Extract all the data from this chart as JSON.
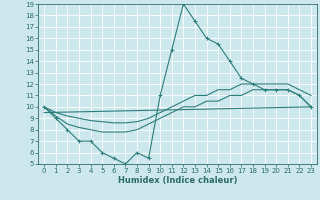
{
  "xlabel": "Humidex (Indice chaleur)",
  "xlim": [
    -0.5,
    23.5
  ],
  "ylim": [
    5,
    19
  ],
  "xticks": [
    0,
    1,
    2,
    3,
    4,
    5,
    6,
    7,
    8,
    9,
    10,
    11,
    12,
    13,
    14,
    15,
    16,
    17,
    18,
    19,
    20,
    21,
    22,
    23
  ],
  "yticks": [
    5,
    6,
    7,
    8,
    9,
    10,
    11,
    12,
    13,
    14,
    15,
    16,
    17,
    18,
    19
  ],
  "bg_color": "#cde8ed",
  "grid_color": "#ffffff",
  "line_color": "#2d7d7a",
  "line1_x": [
    0,
    1,
    2,
    3,
    4,
    5,
    6,
    7,
    8,
    9,
    10,
    11,
    12,
    13,
    14,
    15,
    16,
    17,
    18,
    19,
    20,
    21,
    22,
    23
  ],
  "line1_y": [
    10,
    9,
    8,
    7,
    7,
    6,
    5.5,
    5,
    6,
    5.5,
    11,
    15,
    19,
    17.5,
    16,
    15.5,
    14,
    12.5,
    12,
    11.5,
    11.5,
    11.5,
    11,
    10
  ],
  "line2_x": [
    0,
    23
  ],
  "line2_y": [
    9.5,
    10.0
  ],
  "line3_x": [
    0,
    1,
    2,
    3,
    4,
    5,
    6,
    7,
    8,
    9,
    10,
    11,
    12,
    13,
    14,
    15,
    16,
    17,
    18,
    19,
    20,
    21,
    22,
    23
  ],
  "line3_y": [
    10,
    9.5,
    9.2,
    9.0,
    8.8,
    8.7,
    8.6,
    8.6,
    8.7,
    9.0,
    9.5,
    10.0,
    10.5,
    11.0,
    11.0,
    11.5,
    11.5,
    12.0,
    12.0,
    12.0,
    12.0,
    12.0,
    11.5,
    11.0
  ],
  "line4_x": [
    0,
    1,
    2,
    3,
    4,
    5,
    6,
    7,
    8,
    9,
    10,
    11,
    12,
    13,
    14,
    15,
    16,
    17,
    18,
    19,
    20,
    21,
    22,
    23
  ],
  "line4_y": [
    10,
    9.2,
    8.5,
    8.2,
    8.0,
    7.8,
    7.8,
    7.8,
    8.0,
    8.5,
    9.0,
    9.5,
    10.0,
    10.0,
    10.5,
    10.5,
    11.0,
    11.0,
    11.5,
    11.5,
    11.5,
    11.5,
    11.0,
    10.0
  ],
  "font_color": "#2d6b68",
  "tick_fontsize": 5.0,
  "xlabel_fontsize": 6.0
}
